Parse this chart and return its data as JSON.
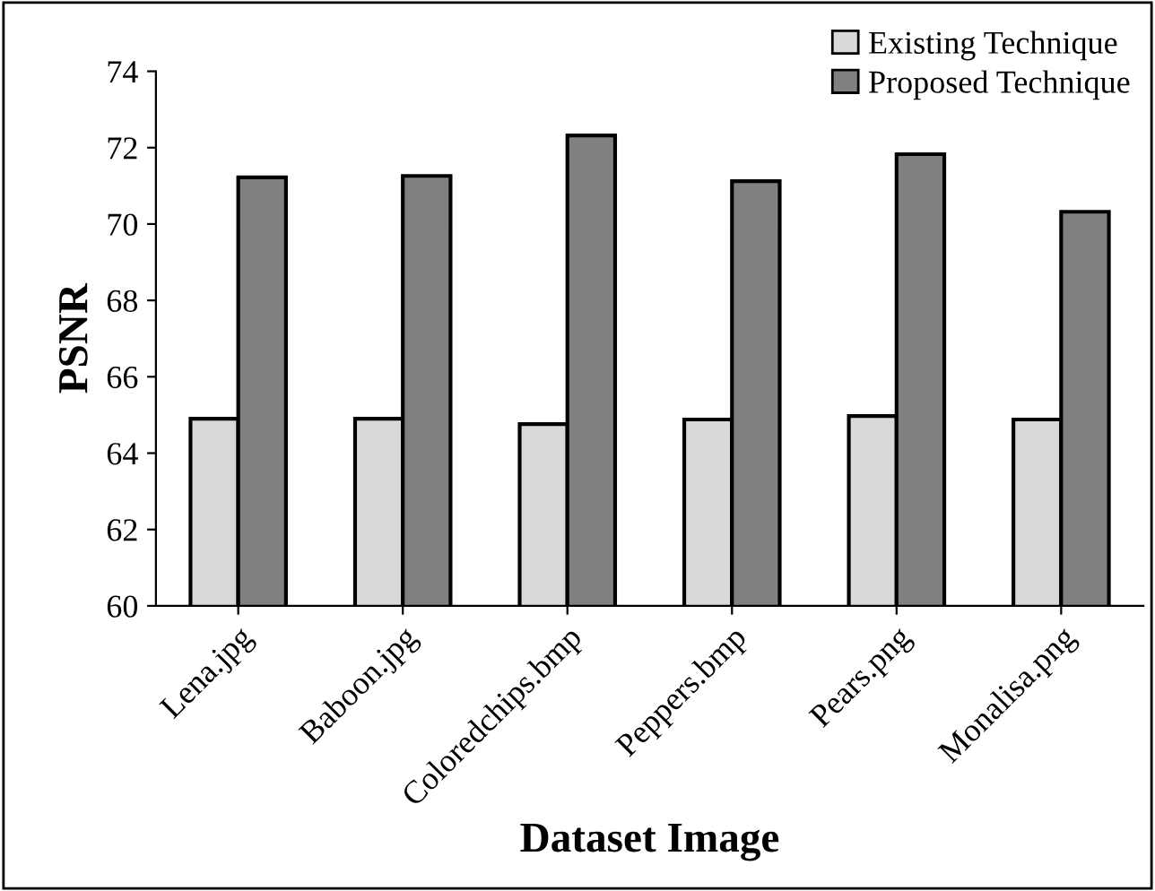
{
  "chart_data": {
    "type": "bar",
    "xlabel": "Dataset Image",
    "ylabel": "PSNR",
    "categories": [
      "Lena.jpg",
      "Baboon.jpg",
      "Coloredchips.bmp",
      "Peppers.bmp",
      "Pears.png",
      "Monalisa.png"
    ],
    "series": [
      {
        "name": "Existing Technique",
        "color": "#d9d9d9",
        "values": [
          64.9,
          64.9,
          64.76,
          64.88,
          64.97,
          64.88
        ]
      },
      {
        "name": "Proposed Technique",
        "color": "#808080",
        "values": [
          71.22,
          71.26,
          72.32,
          71.12,
          71.83,
          70.32
        ]
      }
    ],
    "ylim": [
      60,
      74
    ],
    "yticks": [
      60,
      62,
      64,
      66,
      68,
      70,
      72,
      74
    ],
    "grid": false,
    "legend": "top right"
  }
}
